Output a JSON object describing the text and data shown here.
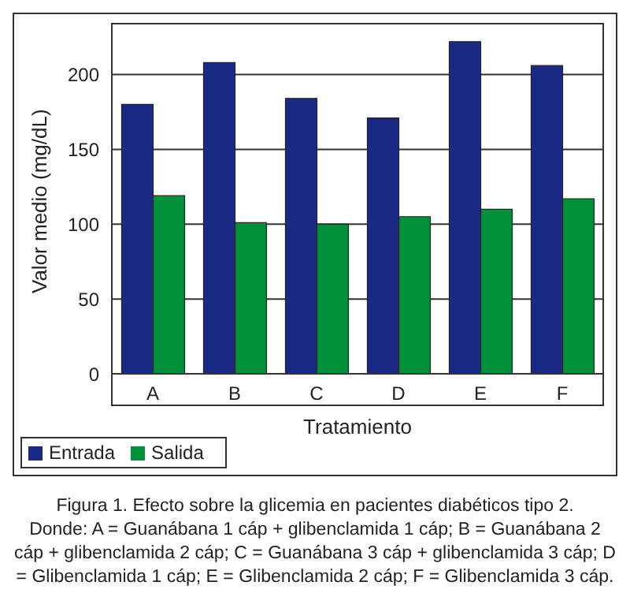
{
  "chart_data": {
    "type": "bar",
    "xlabel": "Tratamiento",
    "ylabel": "Valor medio (mg/dL)",
    "categories": [
      "A",
      "B",
      "C",
      "D",
      "E",
      "F"
    ],
    "series": [
      {
        "name": "Entrada",
        "color": "#1b2a84",
        "values": [
          180,
          208,
          184,
          171,
          222,
          206
        ]
      },
      {
        "name": "Salida",
        "color": "#00913a",
        "values": [
          119,
          101,
          100,
          105,
          110,
          117
        ]
      }
    ],
    "ylim": [
      0,
      234
    ],
    "yticks": [
      0,
      50,
      100,
      150,
      200
    ],
    "grid": "y",
    "legend": "bottom left",
    "annotations": [
      "Figura 1. Efecto sobre la glicemia en pacientes diabéticos tipo 2.",
      "Donde: A = Guanábana 1 cáp + glibenclamida 1 cáp; B = Guanábana 2 cáp + glibenclamida 2 cáp; C = Guanábana 3 cáp + glibenclamida 3 cáp; D = Glibenclamida 1 cáp; E = Glibenclamida 2 cáp; F = Glibenclamida 3 cáp."
    ]
  }
}
